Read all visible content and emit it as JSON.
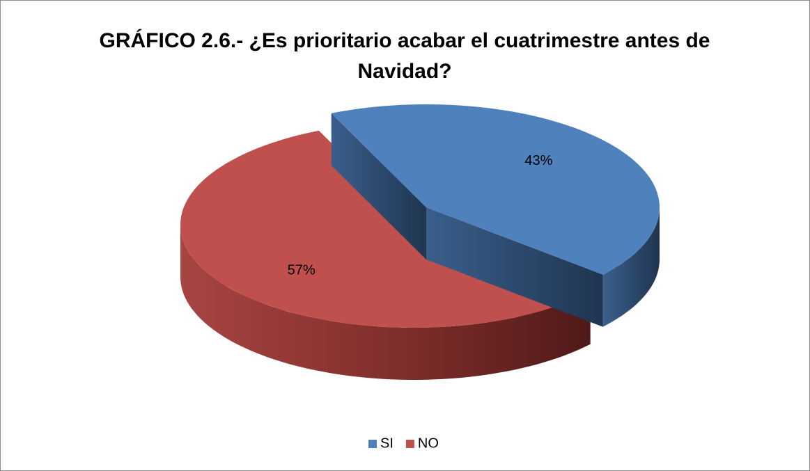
{
  "chart_data": {
    "type": "pie",
    "title": "GRÁFICO 2.6.- ¿Es prioritario acabar el cuatrimestre antes de Navidad?",
    "categories": [
      "SI",
      "NO"
    ],
    "values": [
      43,
      57
    ],
    "value_labels": [
      "43%",
      "57%"
    ],
    "colors": [
      "#4f81bd",
      "#c0504d"
    ],
    "legend": "bottom"
  }
}
